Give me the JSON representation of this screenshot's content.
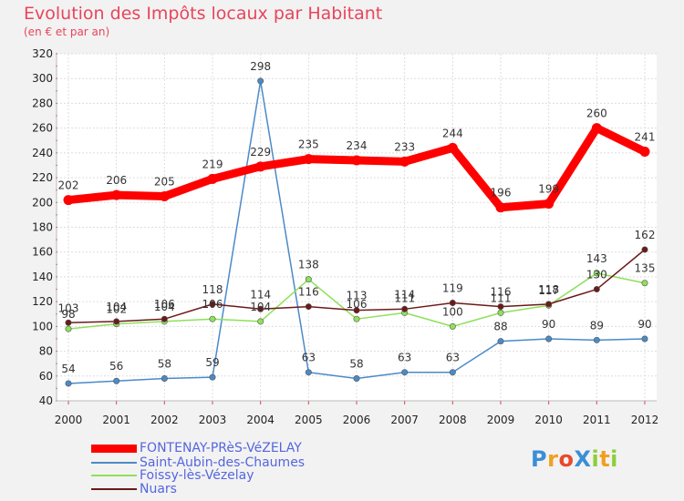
{
  "chart_data": {
    "type": "line",
    "title": "Evolution des Impôts locaux par Habitant",
    "subtitle": "(en € et par an)",
    "categories": [
      "2000",
      "2001",
      "2002",
      "2003",
      "2004",
      "2005",
      "2006",
      "2007",
      "2008",
      "2009",
      "2010",
      "2011",
      "2012"
    ],
    "ylim": [
      40,
      320
    ],
    "yticks": [
      40,
      60,
      80,
      100,
      120,
      140,
      160,
      180,
      200,
      220,
      240,
      260,
      280,
      300,
      320
    ],
    "grid": true,
    "series": [
      {
        "name": "FONTENAY-PRèS-VéZELAY",
        "color": "#ff0000",
        "values": [
          202,
          206,
          205,
          219,
          229,
          235,
          234,
          233,
          244,
          196,
          199,
          260,
          241
        ]
      },
      {
        "name": "Saint-Aubin-des-Chaumes",
        "color": "#4b8ac8",
        "values": [
          54,
          56,
          58,
          59,
          298,
          63,
          58,
          63,
          63,
          88,
          90,
          89,
          90
        ]
      },
      {
        "name": "Foissy-lès-Vézelay",
        "color": "#8ee05a",
        "values": [
          98,
          102,
          104,
          106,
          104,
          138,
          106,
          111,
          100,
          111,
          117,
          143,
          135
        ]
      },
      {
        "name": "Nuars",
        "color": "#6b1a1a",
        "values": [
          103,
          104,
          106,
          118,
          114,
          116,
          113,
          114,
          119,
          116,
          118,
          130,
          162
        ]
      }
    ],
    "data_labels": [
      [
        202,
        206,
        205,
        219,
        229,
        235,
        234,
        233,
        244,
        196,
        199,
        260,
        241
      ],
      [
        54,
        56,
        58,
        59,
        298,
        63,
        58,
        63,
        63,
        88,
        90,
        89,
        90
      ],
      [
        98,
        102,
        104,
        106,
        104,
        138,
        106,
        111,
        100,
        111,
        117,
        143,
        135
      ],
      [
        103,
        104,
        106,
        118,
        114,
        116,
        113,
        114,
        119,
        116,
        118,
        130,
        162
      ]
    ]
  },
  "legend": {
    "items": [
      {
        "label": "FONTENAY-PRèS-VéZELAY",
        "color": "#ff0000"
      },
      {
        "label": "Saint-Aubin-des-Chaumes",
        "color": "#4b8ac8"
      },
      {
        "label": "Foissy-lès-Vézelay",
        "color": "#8ee05a"
      },
      {
        "label": "Nuars",
        "color": "#6b1a1a"
      }
    ]
  },
  "logo": {
    "text": "ProXiti",
    "letters": [
      "P",
      "r",
      "o",
      "X",
      "i",
      "t",
      "i"
    ],
    "colors": [
      "#3a8fd6",
      "#f0a020",
      "#e84a2a",
      "#3a8fd6",
      "#8ccf3a",
      "#f0a020",
      "#8ccf3a"
    ]
  }
}
